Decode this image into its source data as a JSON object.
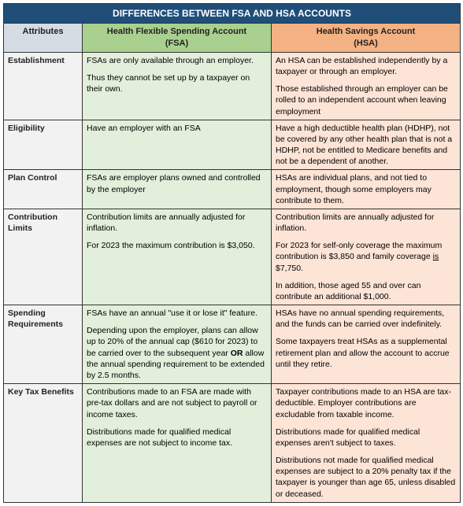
{
  "colors": {
    "title_bg": "#1f4e79",
    "title_fg": "#ffffff",
    "attr_header_bg": "#d6dce4",
    "fsa_header_bg": "#a9d08e",
    "hsa_header_bg": "#f4b183",
    "attr_col_bg": "#f2f2f2",
    "fsa_col_bg": "#e2efda",
    "hsa_col_bg": "#fce4d6",
    "border": "#333333",
    "text": "#222222"
  },
  "title": "DIFFERENCES BETWEEN FSA AND HSA ACCOUNTS",
  "headers": {
    "attr": "Attributes",
    "fsa_line1": "Health Flexible Spending Account",
    "fsa_line2": "(FSA)",
    "hsa_line1": "Health Savings Account",
    "hsa_line2": "(HSA)"
  },
  "rows": [
    {
      "attr": "Establishment",
      "fsa": [
        "FSAs are only available through an employer.",
        "Thus they cannot be set up by a taxpayer on their own."
      ],
      "hsa": [
        "An HSA can be established independently by a taxpayer or through an employer.",
        "Those established through an employer can be rolled to an independent account when leaving employment"
      ]
    },
    {
      "attr": "Eligibility",
      "fsa": [
        "Have an employer with an FSA"
      ],
      "hsa": [
        "Have a high deductible health plan (HDHP), not be covered by any other health plan that is not a HDHP, not be entitled to Medicare benefits and not be a dependent of another."
      ]
    },
    {
      "attr": "Plan Control",
      "fsa": [
        "FSAs are employer plans owned and controlled by the employer"
      ],
      "hsa": [
        "HSAs are individual plans, and not tied to employment, though some employers may contribute to them."
      ]
    },
    {
      "attr": "Contribution Limits",
      "fsa": [
        "Contribution limits are annually adjusted for inflation.",
        "For 2023 the maximum contribution is $3,050."
      ],
      "hsa_special": "limits"
    },
    {
      "attr": "Spending Requirements",
      "fsa_special": "spending",
      "hsa": [
        "HSAs have no annual spending requirements, and the funds can be carried over indefinitely.",
        "Some taxpayers treat HSAs as a supplemental retirement plan and allow the account to accrue until they retire."
      ]
    },
    {
      "attr": "Key Tax Benefits",
      "fsa": [
        "Contributions made to an FSA are made with pre-tax dollars and are not subject to payroll or income taxes.",
        "Distributions made for qualified medical expenses are not subject to income tax."
      ],
      "hsa": [
        "Taxpayer contributions made to an HSA are tax-deductible. Employer contributions are excludable from taxable income.",
        "Distributions made for qualified medical expenses aren't subject to taxes.",
        "Distributions not made for qualified medical expenses are subject to a 20% penalty tax if the taxpayer is younger than age 65, unless disabled or deceased."
      ]
    }
  ],
  "special": {
    "hsa_limits": {
      "p1": "Contribution limits are annually adjusted for inflation.",
      "p2a": "For 2023 for self-only coverage the maximum contribution is $3,850 and family coverage ",
      "p2b_u": "is",
      "p2c": " $7,750.",
      "p3": "In addition, those aged 55 and over can contribute an additional $1,000."
    },
    "fsa_spending": {
      "p1": "FSAs have an annual \"use it or lose it\" feature.",
      "p2a": "Depending upon the employer, plans can allow up to 20% of the annual cap ($610 for 2023) to be carried over to the subsequent year ",
      "p2b_bold": "OR",
      "p2c": " allow the annual spending requirement to be extended by 2.5 months."
    }
  }
}
